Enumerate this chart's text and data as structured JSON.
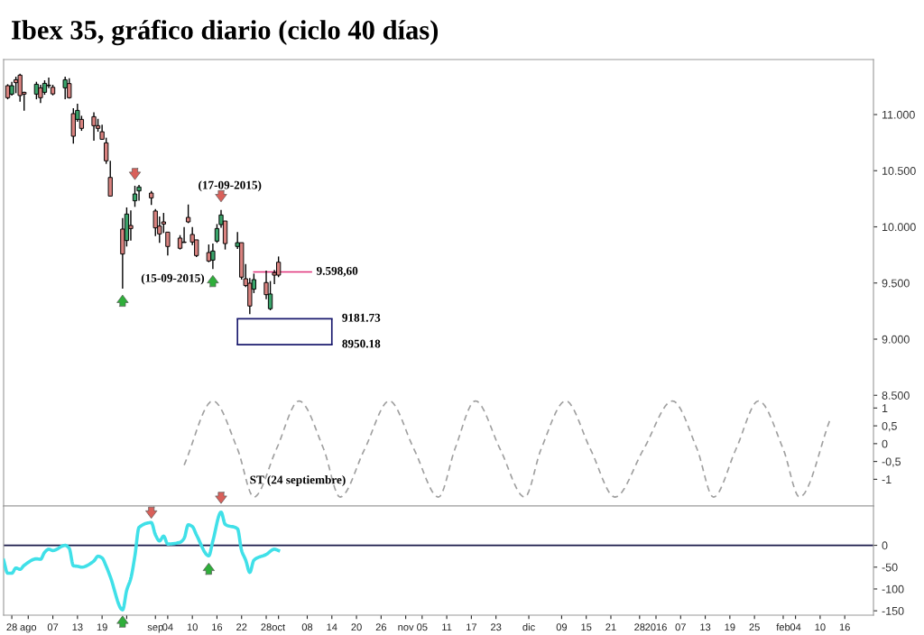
{
  "chart_data": [
    {
      "type": "candlestick",
      "title": "Ibex 35, gráfico diario (ciclo 40 días)",
      "x": [
        "2015-07-27",
        "2015-07-28",
        "2015-07-29",
        "2015-07-30",
        "2015-07-31",
        "2015-08-03",
        "2015-08-04",
        "2015-08-05",
        "2015-08-06",
        "2015-08-07",
        "2015-08-10",
        "2015-08-11",
        "2015-08-12",
        "2015-08-13",
        "2015-08-14",
        "2015-08-17",
        "2015-08-18",
        "2015-08-19",
        "2015-08-20",
        "2015-08-21",
        "2015-08-24",
        "2015-08-25",
        "2015-08-26",
        "2015-08-27",
        "2015-08-28",
        "2015-08-31",
        "2015-09-01",
        "2015-09-02",
        "2015-09-03",
        "2015-09-04",
        "2015-09-07",
        "2015-09-08",
        "2015-09-09",
        "2015-09-10",
        "2015-09-11",
        "2015-09-14",
        "2015-09-15",
        "2015-09-16",
        "2015-09-17",
        "2015-09-18",
        "2015-09-21",
        "2015-09-22",
        "2015-09-23",
        "2015-09-24",
        "2015-09-25",
        "2015-09-28",
        "2015-09-29",
        "2015-09-30",
        "2015-10-01"
      ],
      "ohlc": [
        [
          11257,
          11270,
          11136,
          11150
        ],
        [
          11182,
          11292,
          11169,
          11257
        ],
        [
          11310,
          11337,
          11190,
          11284
        ],
        [
          11351,
          11364,
          11115,
          11169
        ],
        [
          11198,
          11203,
          11035,
          11182
        ],
        [
          11182,
          11292,
          11136,
          11270
        ],
        [
          11238,
          11265,
          11102,
          11150
        ],
        [
          11198,
          11305,
          11176,
          11278
        ],
        [
          11262,
          11329,
          11235,
          11257
        ],
        [
          11243,
          11265,
          11171,
          11184
        ],
        [
          11238,
          11337,
          11136,
          11310
        ],
        [
          11276,
          11324,
          11142,
          11150
        ],
        [
          11008,
          11056,
          10740,
          10807
        ],
        [
          10957,
          11096,
          10936,
          11037
        ],
        [
          10957,
          10989,
          10855,
          10877
        ],
        [
          10981,
          11021,
          10767,
          10901
        ],
        [
          10901,
          10962,
          10847,
          10877
        ],
        [
          10847,
          10909,
          10775,
          10780
        ],
        [
          10748,
          10794,
          10561,
          10588
        ],
        [
          10440,
          10588,
          10274,
          10274
        ],
        [
          9980,
          10079,
          9450,
          9758
        ],
        [
          9878,
          10173,
          9825,
          10114
        ],
        [
          10012,
          10146,
          9878,
          9985
        ],
        [
          10232,
          10366,
          10178,
          10293
        ],
        [
          10320,
          10374,
          10232,
          10355
        ],
        [
          10301,
          10320,
          10194,
          10258
        ],
        [
          10141,
          10159,
          9918,
          9991
        ],
        [
          10007,
          10092,
          9857,
          9937
        ],
        [
          10044,
          10124,
          9945,
          10025
        ],
        [
          9953,
          9953,
          9744,
          9825
        ],
        [
          9900,
          9926,
          9798,
          9809
        ],
        [
          9865,
          9999,
          9860,
          9860
        ],
        [
          10084,
          10199,
          10033,
          10044
        ],
        [
          9932,
          9999,
          9838,
          9865
        ],
        [
          9884,
          9884,
          9731,
          9744
        ],
        [
          9771,
          9843,
          9685,
          9696
        ],
        [
          9704,
          9851,
          9624,
          9785
        ],
        [
          9873,
          10025,
          9857,
          9985
        ],
        [
          10020,
          10151,
          9991,
          10106
        ],
        [
          10052,
          10052,
          9798,
          9851
        ],
        [
          9825,
          9953,
          9803,
          9859
        ],
        [
          9859,
          9859,
          9530,
          9552
        ],
        [
          9538,
          9669,
          9463,
          9477
        ],
        [
          9498,
          9544,
          9222,
          9295
        ],
        [
          9445,
          9584,
          9410,
          9530
        ],
        [
          9504,
          9611,
          9356,
          9396
        ],
        [
          9271,
          9517,
          9257,
          9402
        ],
        [
          9592,
          9616,
          9490,
          9570
        ],
        [
          9685,
          9736,
          9552,
          9570
        ]
      ],
      "colors": [
        "#d9827f",
        "#3aa36a",
        "#d9827f",
        "#d9827f",
        "#d9827f",
        "#3aa36a",
        "#d9827f",
        "#3aa36a",
        "#d9827f",
        "#d9827f",
        "#3aa36a",
        "#d9827f",
        "#d9827f",
        "#3aa36a",
        "#d9827f",
        "#d9827f",
        "#d9827f",
        "#d9827f",
        "#d9827f",
        "#d9827f",
        "#d9827f",
        "#3aa36a",
        "#d9827f",
        "#3aa36a",
        "#3aa36a",
        "#d9827f",
        "#d9827f",
        "#d9827f",
        "#d9827f",
        "#d9827f",
        "#d9827f",
        "#d9827f",
        "#d9827f",
        "#d9827f",
        "#d9827f",
        "#d9827f",
        "#3aa36a",
        "#3aa36a",
        "#3aa36a",
        "#d9827f",
        "#3aa36a",
        "#d9827f",
        "#d9827f",
        "#d9827f",
        "#3aa36a",
        "#d9827f",
        "#3aa36a",
        "#d9827f",
        "#d9827f"
      ],
      "series": [
        {
          "type": "line",
          "x": [
            "2015-09-25",
            "2015-10-09"
          ],
          "values": [
            9598.6,
            9598.6
          ],
          "color": "#e0307a"
        },
        {
          "type": "line",
          "x": [
            "2015-09-21",
            "2015-10-14"
          ],
          "values": [
            9181.73,
            9181.73
          ],
          "color": "#1a1a6e"
        },
        {
          "type": "line",
          "x": [
            "2015-09-21",
            "2015-10-14"
          ],
          "values": [
            8950.18,
            8950.18
          ],
          "color": "#1a1a6e"
        }
      ],
      "annotations": [
        {
          "text": "(17-09-2015)",
          "x": "2015-09-17",
          "y": 10151
        },
        {
          "text": "(15-09-2015)",
          "x": "2015-09-15",
          "y": 9624
        },
        {
          "text": "9.598,60",
          "x": "2015-10-09",
          "y": 9598.6
        },
        {
          "text": "9181.73",
          "x": "2015-10-14",
          "y": 9181.73
        },
        {
          "text": "8950.18",
          "x": "2015-10-14",
          "y": 8950.18
        }
      ],
      "xlim": [
        "2015-07-26",
        "2016-02-23"
      ],
      "ylim": [
        7514,
        11490
      ],
      "yticks": [
        {
          "value": 8500,
          "label": "8.500"
        },
        {
          "value": 9000,
          "label": "9.000"
        },
        {
          "value": 9500,
          "label": "9.500"
        },
        {
          "value": 10000,
          "label": "10.000"
        },
        {
          "value": 10500,
          "label": "10.500"
        },
        {
          "value": 11000,
          "label": "11.000"
        }
      ],
      "tick_labels": "y",
      "grid": false,
      "legend": false
    },
    {
      "type": "line",
      "line_style": "dashed",
      "series": [
        {
          "color": "#a0a0a0",
          "x": [
            "2015-09-08",
            "2015-09-15",
            "2015-09-21",
            "2015-09-25",
            "2015-09-30T12:00",
            "2015-10-06",
            "2015-10-12",
            "2015-10-16",
            "2015-10-22",
            "2015-10-28",
            "2015-11-03",
            "2015-11-09",
            "2015-11-13",
            "2015-11-18",
            "2015-11-24",
            "2015-11-30",
            "2015-12-04",
            "2015-12-10",
            "2015-12-16",
            "2015-12-22",
            "2015-12-29",
            "2016-01-05",
            "2016-01-11",
            "2016-01-15",
            "2016-01-20T12:00",
            "2016-01-26",
            "2016-02-01",
            "2016-02-05",
            "2016-02-12T12:00"
          ],
          "values": [
            -0.6,
            1.2,
            -0.15,
            -1.5,
            -0.15,
            1.2,
            -0.15,
            -1.5,
            -0.15,
            1.2,
            -0.15,
            -1.5,
            -0.15,
            1.2,
            -0.15,
            -1.5,
            -0.15,
            1.2,
            -0.15,
            -1.5,
            -0.15,
            1.2,
            -0.15,
            -1.5,
            -0.15,
            1.2,
            -0.15,
            -1.5,
            0.7
          ]
        }
      ],
      "annotations": [
        {
          "text": "ST (24 septiembre)",
          "x": "2015-09-25",
          "y": -1.5
        }
      ],
      "xlim": [
        "2015-07-26",
        "2016-02-23"
      ],
      "ylim": [
        -1.75,
        10.78
      ],
      "yticks": [
        -1,
        {
          "value": -0.5,
          "label": "-0,5"
        },
        0,
        {
          "value": 0.5,
          "label": "0,5"
        },
        1
      ],
      "tick_labels": "y",
      "grid": false,
      "legend": false
    },
    {
      "type": "line",
      "series": [
        {
          "color": "#40e0e8",
          "x": [
            "2015-07-26",
            "2015-07-27",
            "2015-07-28",
            "2015-07-29",
            "2015-07-30",
            "2015-07-31",
            "2015-08-03",
            "2015-08-04",
            "2015-08-05",
            "2015-08-06",
            "2015-08-07",
            "2015-08-10",
            "2015-08-11",
            "2015-08-12",
            "2015-08-13",
            "2015-08-14",
            "2015-08-17",
            "2015-08-18",
            "2015-08-19",
            "2015-08-20",
            "2015-08-21",
            "2015-08-24",
            "2015-08-25",
            "2015-08-26",
            "2015-08-27",
            "2015-08-28",
            "2015-08-31",
            "2015-09-01",
            "2015-09-02",
            "2015-09-03",
            "2015-09-04",
            "2015-09-07",
            "2015-09-08",
            "2015-09-09",
            "2015-09-10",
            "2015-09-11",
            "2015-09-14",
            "2015-09-15",
            "2015-09-17",
            "2015-09-18",
            "2015-09-21",
            "2015-09-22",
            "2015-09-23",
            "2015-09-24",
            "2015-09-25",
            "2015-09-28",
            "2015-09-30",
            "2015-10-01"
          ],
          "values": [
            -34,
            -64,
            -64,
            -52,
            -55,
            -46,
            -31,
            -32,
            -16,
            -9,
            -12,
            0,
            -7,
            -47,
            -48,
            -50,
            -36,
            -25,
            -29,
            -48,
            -72,
            -148,
            -103,
            -76,
            -24,
            41,
            52,
            24,
            10,
            21,
            3,
            7,
            16,
            47,
            43,
            24,
            -24,
            10,
            76,
            48,
            38,
            -12,
            -34,
            -62,
            -34,
            -21,
            -9,
            -12
          ]
        }
      ],
      "ref_lines": [
        {
          "axis": "y",
          "value": 0,
          "color": "#1a1a4a"
        }
      ],
      "xlim": [
        "2015-07-26",
        "2016-02-23"
      ],
      "ylim": [
        -160,
        90
      ],
      "xticks": [
        {
          "value": "2015-07-28",
          "label": "28"
        },
        {
          "value": "2015-08-01",
          "label": "ago"
        },
        {
          "value": "2015-08-07",
          "label": "07"
        },
        {
          "value": "2015-08-13",
          "label": "13"
        },
        {
          "value": "2015-08-19",
          "label": "19"
        },
        {
          "value": "2015-08-25",
          "label": null
        },
        {
          "value": "2015-09-01",
          "label": "sep"
        },
        {
          "value": "2015-09-04",
          "label": "04"
        },
        {
          "value": "2015-09-10",
          "label": "10"
        },
        {
          "value": "2015-09-16",
          "label": "16"
        },
        {
          "value": "2015-09-22",
          "label": "22"
        },
        {
          "value": "2015-09-28",
          "label": "28"
        },
        {
          "value": "2015-10-01",
          "label": "oct"
        },
        {
          "value": "2015-10-08",
          "label": "08"
        },
        {
          "value": "2015-10-14",
          "label": "14"
        },
        {
          "value": "2015-10-20",
          "label": "20"
        },
        {
          "value": "2015-10-26",
          "label": "26"
        },
        {
          "value": "2015-11-01",
          "label": "nov"
        },
        {
          "value": "2015-11-05",
          "label": "05"
        },
        {
          "value": "2015-11-11",
          "label": "11"
        },
        {
          "value": "2015-11-17",
          "label": "17"
        },
        {
          "value": "2015-11-23",
          "label": "23"
        },
        {
          "value": "2015-12-01",
          "label": "dic"
        },
        {
          "value": "2015-12-09",
          "label": "09"
        },
        {
          "value": "2015-12-15",
          "label": "15"
        },
        {
          "value": "2015-12-21",
          "label": "21"
        },
        {
          "value": "2015-12-28",
          "label": "28"
        },
        {
          "value": "2016-01-01",
          "label": "2016"
        },
        {
          "value": "2016-01-07",
          "label": "07"
        },
        {
          "value": "2016-01-13",
          "label": "13"
        },
        {
          "value": "2016-01-19",
          "label": "19"
        },
        {
          "value": "2016-01-25",
          "label": "25"
        },
        {
          "value": "2016-02-01",
          "label": "feb"
        },
        {
          "value": "2016-02-04",
          "label": "04"
        },
        {
          "value": "2016-02-10",
          "label": "10"
        },
        {
          "value": "2016-02-16",
          "label": "16"
        }
      ],
      "yticks": [
        -150,
        -100,
        -50,
        0
      ],
      "grid": false,
      "legend": false
    }
  ]
}
